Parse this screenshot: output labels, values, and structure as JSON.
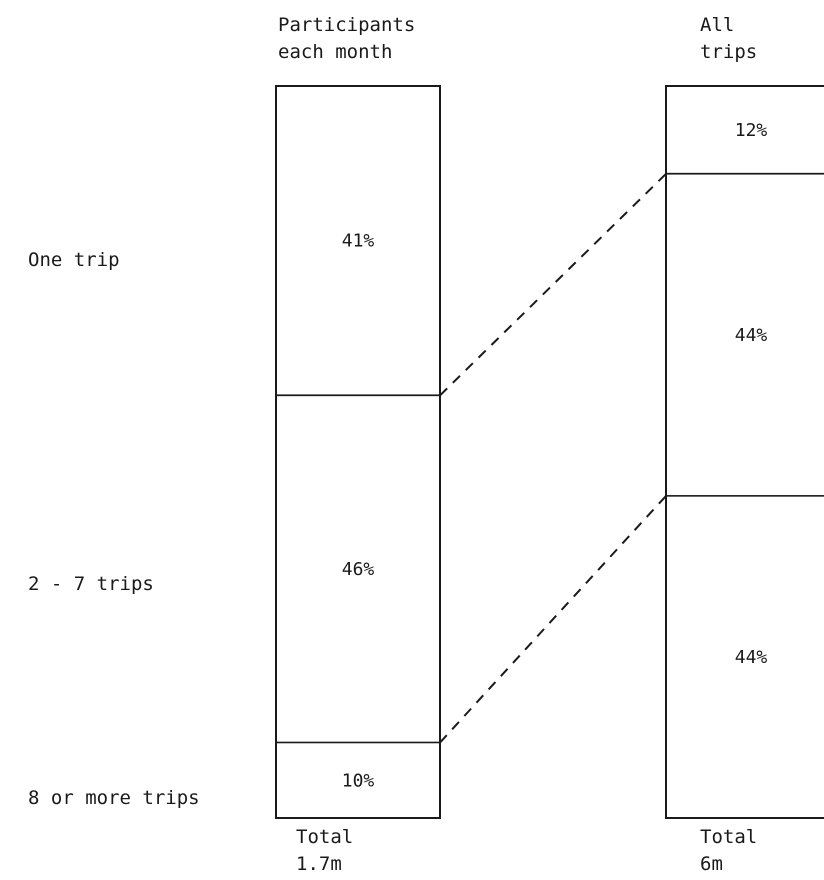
{
  "chart_data": {
    "type": "stacked_bar",
    "categories": [
      "One trip",
      "2 - 7 trips",
      "8 or more trips"
    ],
    "bars": [
      {
        "heading": [
          "Participants",
          "each month"
        ],
        "values": [
          41,
          46,
          10
        ],
        "value_labels": [
          "41%",
          "46%",
          "10%"
        ],
        "total": [
          "Total",
          "1.7m"
        ]
      },
      {
        "heading": [
          "All",
          "trips"
        ],
        "values": [
          12,
          44,
          44
        ],
        "value_labels": [
          "12%",
          "44%",
          "44%"
        ],
        "total": [
          "Total",
          "6m"
        ]
      }
    ],
    "connectors": [
      {
        "from_boundary": "One trip / 2 - 7 trips",
        "to_boundary": "One trip / 2 - 7 trips",
        "style": "dashed"
      },
      {
        "from_boundary": "2 - 7 trips / 8 or more trips",
        "to_boundary": "2 - 7 trips / 8 or more trips",
        "style": "dashed"
      }
    ],
    "stack_order": "top-to-bottom",
    "unit": "%"
  }
}
